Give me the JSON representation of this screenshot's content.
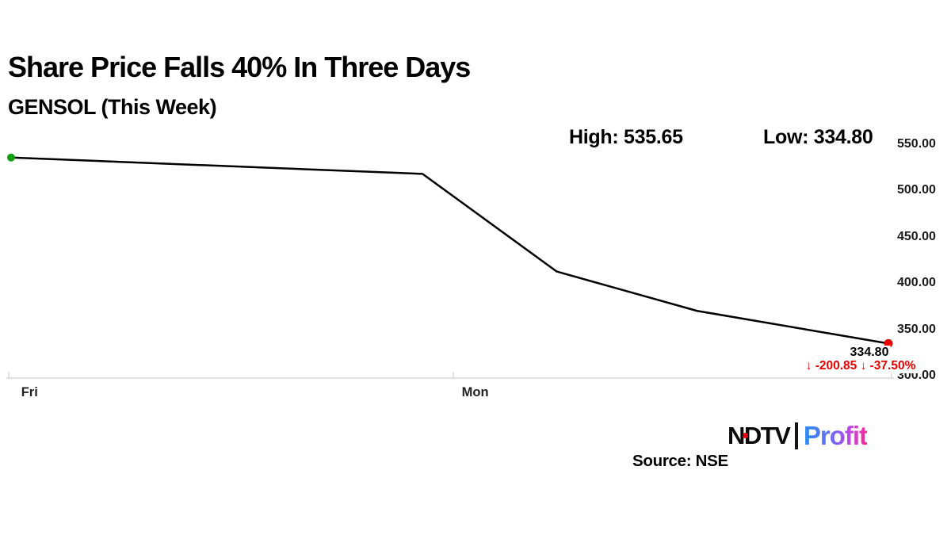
{
  "header": {
    "title": "Share Price Falls 40% In Three Days",
    "subtitle": "GENSOL (This Week)"
  },
  "stats": {
    "high_label": "High:",
    "high_value": "535.65",
    "low_label": "Low:",
    "low_value": "334.80"
  },
  "chart_data": {
    "type": "line",
    "title": "GENSOL (This Week)",
    "high": 535.65,
    "low": 334.8,
    "y_axis_range": [
      550,
      300
    ],
    "y_ticks": [
      "550.00",
      "500.00",
      "450.00",
      "400.00",
      "350.00",
      "300.00"
    ],
    "x_ticks": [
      {
        "label": "Fri",
        "pos": 0.0,
        "label_pos": 0.021
      },
      {
        "label": "Mon",
        "pos": 0.504,
        "label_pos": 0.529
      }
    ],
    "series": [
      {
        "name": "GENSOL",
        "line_color": "#000000",
        "start_marker_color": "#12a012",
        "end_marker_color": "#e60000",
        "points": [
          {
            "x": 0.0,
            "value": 535.65
          },
          {
            "x": 0.469,
            "value": 518.0
          },
          {
            "x": 0.622,
            "value": 412.5
          },
          {
            "x": 0.782,
            "value": 370.0
          },
          {
            "x": 1.0,
            "value": 334.8
          }
        ]
      }
    ],
    "axis_color": "#d8d8d8",
    "grid": "off",
    "legend": "none"
  },
  "annotation": {
    "price": "334.80",
    "change": "↓ -200.85 ↓ -37.50%",
    "color": "#e60000"
  },
  "footer": {
    "source": "Source: NSE"
  },
  "logo": {
    "ndtv_text": "NDTV",
    "profit_text": "Profit",
    "gradient": [
      "#2a8cf4",
      "#6e6af2",
      "#b84bee",
      "#f92a93"
    ]
  }
}
